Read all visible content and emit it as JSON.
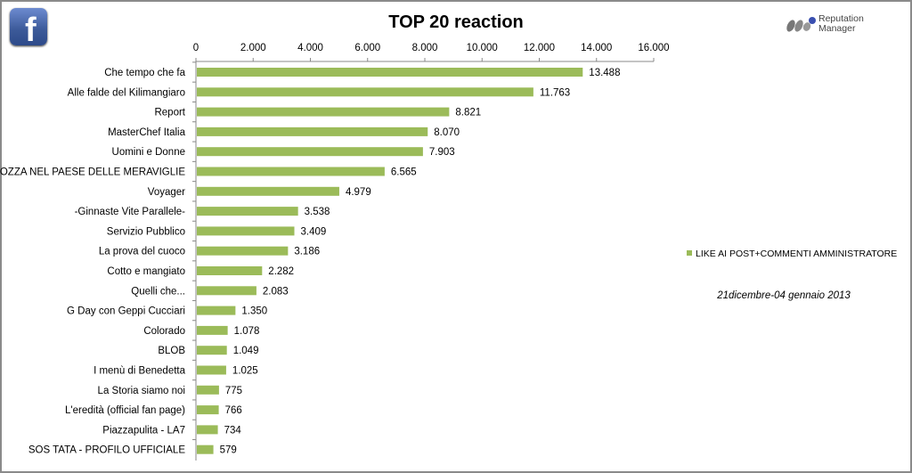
{
  "logos": {
    "facebook": "f",
    "brand": {
      "line1": "Reputation",
      "line2": "Manager"
    }
  },
  "chart_data": {
    "type": "bar",
    "orientation": "horizontal",
    "title": "TOP 20 reaction",
    "categories": [
      "Che tempo che fa",
      "Alle falde del Kilimangiaro",
      "Report",
      "MasterChef Italia",
      "Uomini e Donne",
      "CROZZA NEL PAESE DELLE MERAVIGLIE",
      "Voyager",
      "-Ginnaste Vite Parallele-",
      "Servizio Pubblico",
      "La prova del cuoco",
      "Cotto e mangiato",
      "Quelli che...",
      "G Day con Geppi Cucciari",
      "Colorado",
      "BLOB",
      "I menù di Benedetta",
      "La Storia siamo noi",
      "L'eredità (official fan page)",
      "Piazzapulita - LA7",
      "SOS TATA - PROFILO UFFICIALE"
    ],
    "series": [
      {
        "name": "LIKE AI POST+COMMENTI AMMINISTRATORE",
        "color": "#9bbb59",
        "values": [
          13488,
          11763,
          8821,
          8070,
          7903,
          6565,
          4979,
          3538,
          3409,
          3186,
          2282,
          2083,
          1350,
          1078,
          1049,
          1025,
          775,
          766,
          734,
          579
        ],
        "labels": [
          "13.488",
          "11.763",
          "8.821",
          "8.070",
          "7.903",
          "6.565",
          "4.979",
          "3.538",
          "3.409",
          "3.186",
          "2.282",
          "2.083",
          "1.350",
          "1.078",
          "1.049",
          "1.025",
          "775",
          "766",
          "734",
          "579"
        ]
      }
    ],
    "xlim": [
      0,
      16000
    ],
    "xticks": [
      0,
      2000,
      4000,
      6000,
      8000,
      10000,
      12000,
      14000,
      16000
    ],
    "xtick_labels": [
      "0",
      "2.000",
      "4.000",
      "6.000",
      "8.000",
      "10.000",
      "12.000",
      "14.000",
      "16.000"
    ],
    "xaxis_position": "top",
    "legend_position": "right",
    "annotation": "21dicembre-04 gennaio 2013",
    "grid": false
  }
}
